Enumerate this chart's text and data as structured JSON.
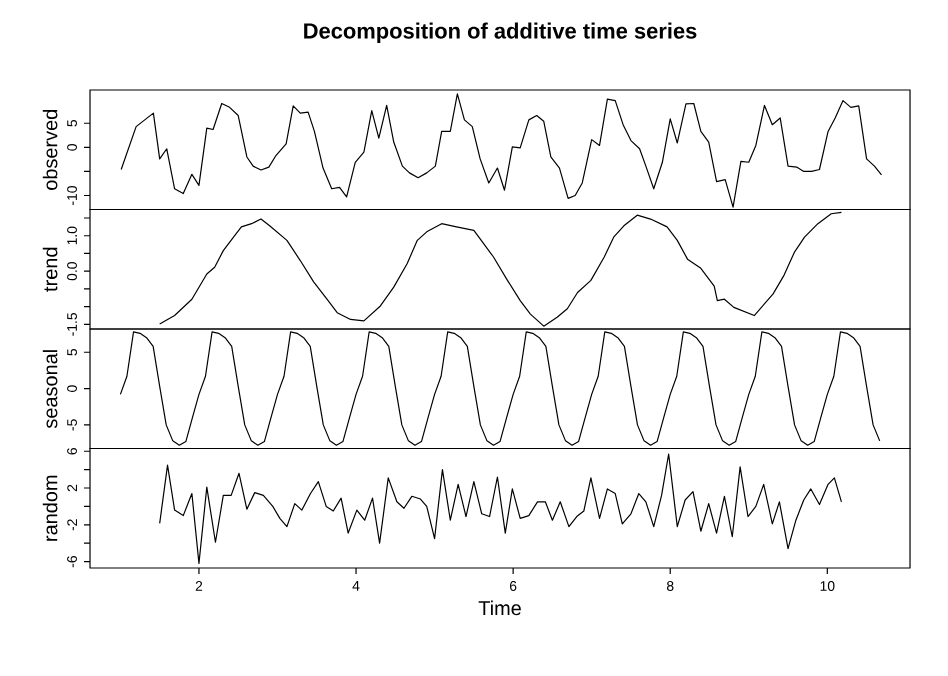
{
  "chart_data": [
    {
      "type": "line",
      "title": "Decomposition of additive time series",
      "ylabel": "observed",
      "tick_labels": "y",
      "xlim": [
        0.613,
        11.053
      ],
      "ylim": [
        -12.9,
        11.9
      ],
      "yticks": [
        -10,
        {
          "value": -5,
          "label": null
        },
        0,
        5
      ],
      "x": [
        1.01,
        1.2,
        1.31,
        1.42,
        1.5,
        1.59,
        1.69,
        1.8,
        1.91,
        2.0,
        2.1,
        2.18,
        2.29,
        2.39,
        2.5,
        2.61,
        2.69,
        2.79,
        2.89,
        2.98,
        3.11,
        3.2,
        3.29,
        3.39,
        3.47,
        3.58,
        3.69,
        3.79,
        3.88,
        3.99,
        4.1,
        4.2,
        4.29,
        4.39,
        4.48,
        4.59,
        4.68,
        4.79,
        4.9,
        5.01,
        5.09,
        5.2,
        5.29,
        5.38,
        5.48,
        5.58,
        5.69,
        5.8,
        5.89,
        5.99,
        6.09,
        6.2,
        6.3,
        6.39,
        6.48,
        6.59,
        6.7,
        6.79,
        6.88,
        7.0,
        7.1,
        7.2,
        7.3,
        7.4,
        7.5,
        7.61,
        7.69,
        7.79,
        7.9,
        8.0,
        8.09,
        8.2,
        8.3,
        8.39,
        8.49,
        8.59,
        8.7,
        8.8,
        8.9,
        9.0,
        9.09,
        9.2,
        9.3,
        9.4,
        9.5,
        9.61,
        9.7,
        9.8,
        9.9,
        10.01,
        10.1,
        10.2,
        10.3,
        10.4,
        10.5,
        10.6,
        10.69
      ],
      "values": [
        -4.6,
        4.3,
        5.7,
        7.1,
        -2.4,
        -0.3,
        -8.6,
        -9.6,
        -5.6,
        -7.9,
        4.0,
        3.7,
        9.1,
        8.3,
        6.6,
        -2.0,
        -3.9,
        -4.7,
        -4.1,
        -1.7,
        0.7,
        8.6,
        7.1,
        7.3,
        3.3,
        -4.3,
        -8.6,
        -8.3,
        -10.3,
        -3.1,
        -1.0,
        7.6,
        1.9,
        8.7,
        1.1,
        -3.9,
        -5.3,
        -6.3,
        -5.3,
        -3.9,
        3.3,
        3.3,
        11.1,
        5.7,
        4.3,
        -2.4,
        -7.4,
        -4.3,
        -8.9,
        0.1,
        -0.1,
        5.7,
        6.6,
        5.4,
        -2.0,
        -4.3,
        -10.6,
        -10.0,
        -7.4,
        1.6,
        0.4,
        10.0,
        9.7,
        4.7,
        1.4,
        -0.3,
        -3.9,
        -8.6,
        -3.1,
        5.9,
        0.9,
        9.0,
        9.1,
        3.3,
        1.1,
        -7.1,
        -6.7,
        -12.4,
        -2.9,
        -3.1,
        0.4,
        8.7,
        4.7,
        6.1,
        -3.9,
        -4.1,
        -5.0,
        -5.0,
        -4.6,
        3.3,
        6.1,
        9.7,
        8.3,
        8.6,
        -2.4,
        -3.9,
        -5.7
      ]
    },
    {
      "type": "line",
      "ylabel": "trend",
      "tick_labels": "y",
      "xlim": [
        0.613,
        11.053
      ],
      "ylim": [
        -1.63,
        1.74
      ],
      "yticks": [
        -1.5,
        {
          "value": -1,
          "label": null
        },
        {
          "value": -0.5,
          "label": null
        },
        {
          "value": 0,
          "label": "0.0"
        },
        {
          "value": 0.5,
          "label": null
        },
        {
          "value": 1,
          "label": "1.0"
        },
        {
          "value": 1.5,
          "label": null
        }
      ],
      "x": [
        1.5,
        1.69,
        1.91,
        2.1,
        2.2,
        2.31,
        2.44,
        2.54,
        2.67,
        2.79,
        2.9,
        3.12,
        3.29,
        3.46,
        3.63,
        3.76,
        3.93,
        4.1,
        4.31,
        4.48,
        4.65,
        4.78,
        4.9,
        5.09,
        5.28,
        5.5,
        5.58,
        5.75,
        5.92,
        6.09,
        6.22,
        6.39,
        6.56,
        6.69,
        6.82,
        6.99,
        7.16,
        7.28,
        7.41,
        7.58,
        7.75,
        7.96,
        8.09,
        8.22,
        8.39,
        8.56,
        8.6,
        8.69,
        8.81,
        9.07,
        9.31,
        9.45,
        9.58,
        9.71,
        9.88,
        10.05,
        10.18
      ],
      "values": [
        -1.49,
        -1.25,
        -0.79,
        -0.08,
        0.11,
        0.58,
        0.96,
        1.25,
        1.34,
        1.47,
        1.28,
        0.87,
        0.3,
        -0.3,
        -0.79,
        -1.17,
        -1.36,
        -1.4,
        -0.98,
        -0.45,
        0.21,
        0.87,
        1.11,
        1.34,
        1.25,
        1.15,
        0.91,
        0.4,
        -0.23,
        -0.83,
        -1.21,
        -1.55,
        -1.3,
        -1.06,
        -0.6,
        -0.26,
        0.4,
        0.96,
        1.28,
        1.58,
        1.47,
        1.25,
        0.87,
        0.34,
        0.08,
        -0.42,
        -0.83,
        -0.79,
        -1.02,
        -1.25,
        -0.64,
        -0.11,
        0.53,
        0.96,
        1.34,
        1.62,
        1.66
      ]
    },
    {
      "type": "line",
      "ylabel": "seasonal",
      "tick_labels": "y",
      "xlim": [
        0.613,
        11.053
      ],
      "ylim": [
        -8.25,
        8.2
      ],
      "yticks": [
        -5,
        0,
        5
      ],
      "x": [
        1,
        1.083,
        1.167,
        1.25,
        1.333,
        1.417,
        1.5,
        1.583,
        1.667,
        1.75,
        1.833,
        1.917,
        2,
        2.083,
        2.167,
        2.25,
        2.333,
        2.417,
        2.5,
        2.583,
        2.667,
        2.75,
        2.833,
        2.917,
        3,
        3.083,
        3.167,
        3.25,
        3.333,
        3.417,
        3.5,
        3.583,
        3.667,
        3.75,
        3.833,
        3.917,
        4,
        4.083,
        4.167,
        4.25,
        4.333,
        4.417,
        4.5,
        4.583,
        4.667,
        4.75,
        4.833,
        4.917,
        5,
        5.083,
        5.167,
        5.25,
        5.333,
        5.417,
        5.5,
        5.583,
        5.667,
        5.75,
        5.833,
        5.917,
        6,
        6.083,
        6.167,
        6.25,
        6.333,
        6.417,
        6.5,
        6.583,
        6.667,
        6.75,
        6.833,
        6.917,
        7,
        7.083,
        7.167,
        7.25,
        7.333,
        7.417,
        7.5,
        7.583,
        7.667,
        7.75,
        7.833,
        7.917,
        8,
        8.083,
        8.167,
        8.25,
        8.333,
        8.417,
        8.5,
        8.583,
        8.667,
        8.75,
        8.833,
        8.917,
        9,
        9.083,
        9.167,
        9.25,
        9.333,
        9.417,
        9.5,
        9.583,
        9.667,
        9.75,
        9.833,
        9.917,
        10,
        10.083,
        10.167,
        10.25,
        10.333,
        10.417,
        10.5,
        10.583,
        10.667
      ],
      "values": [
        -0.8,
        1.7,
        7.8,
        7.6,
        7.0,
        5.8,
        0.3,
        -5.0,
        -7.2,
        -7.8,
        -7.3,
        -4.0,
        -0.8,
        1.7,
        7.8,
        7.6,
        7.0,
        5.8,
        0.3,
        -5.0,
        -7.2,
        -7.8,
        -7.3,
        -4.0,
        -0.8,
        1.7,
        7.8,
        7.6,
        7.0,
        5.8,
        0.3,
        -5.0,
        -7.2,
        -7.8,
        -7.3,
        -4.0,
        -0.8,
        1.7,
        7.8,
        7.6,
        7.0,
        5.8,
        0.3,
        -5.0,
        -7.2,
        -7.8,
        -7.3,
        -4.0,
        -0.8,
        1.7,
        7.8,
        7.6,
        7.0,
        5.8,
        0.3,
        -5.0,
        -7.2,
        -7.8,
        -7.3,
        -4.0,
        -0.8,
        1.7,
        7.8,
        7.6,
        7.0,
        5.8,
        0.3,
        -5.0,
        -7.2,
        -7.8,
        -7.3,
        -4.0,
        -0.8,
        1.7,
        7.8,
        7.6,
        7.0,
        5.8,
        0.3,
        -5.0,
        -7.2,
        -7.8,
        -7.3,
        -4.0,
        -0.8,
        1.7,
        7.8,
        7.6,
        7.0,
        5.8,
        0.3,
        -5.0,
        -7.2,
        -7.8,
        -7.3,
        -4.0,
        -0.8,
        1.7,
        7.8,
        7.6,
        7.0,
        5.8,
        0.3,
        -5.0,
        -7.2,
        -7.8,
        -7.3,
        -4.0,
        -0.8,
        1.7,
        7.8,
        7.6,
        7.0,
        5.8,
        0.3,
        -5.0,
        -7.2
      ]
    },
    {
      "type": "line",
      "ylabel": "random",
      "xlabel": "Time",
      "xlim": [
        0.613,
        11.053
      ],
      "ylim": [
        -6.7,
        6.3
      ],
      "xticks": [
        2,
        4,
        6,
        8,
        10
      ],
      "yticks": [
        -6,
        {
          "value": -4,
          "label": null
        },
        -2,
        {
          "value": 0,
          "label": null
        },
        2,
        {
          "value": 4,
          "label": null
        },
        6
      ],
      "x": [
        1.5,
        1.6,
        1.69,
        1.8,
        1.91,
        2.0,
        2.1,
        2.21,
        2.31,
        2.41,
        2.51,
        2.61,
        2.71,
        2.82,
        2.94,
        3.03,
        3.12,
        3.22,
        3.31,
        3.42,
        3.52,
        3.62,
        3.71,
        3.81,
        3.9,
        4.01,
        4.11,
        4.21,
        4.3,
        4.41,
        4.52,
        4.61,
        4.71,
        4.82,
        4.9,
        5.0,
        5.1,
        5.2,
        5.3,
        5.4,
        5.5,
        5.6,
        5.7,
        5.8,
        5.9,
        5.99,
        6.09,
        6.2,
        6.31,
        6.41,
        6.5,
        6.6,
        6.71,
        6.81,
        6.9,
        6.99,
        7.1,
        7.2,
        7.3,
        7.39,
        7.5,
        7.6,
        7.69,
        7.79,
        7.89,
        7.98,
        8.09,
        8.19,
        8.29,
        8.39,
        8.49,
        8.59,
        8.69,
        8.79,
        8.89,
        8.99,
        9.09,
        9.19,
        9.3,
        9.39,
        9.5,
        9.6,
        9.7,
        9.79,
        9.9,
        10.01,
        10.09,
        10.18
      ],
      "values": [
        -1.85,
        4.5,
        -0.4,
        -1.0,
        1.4,
        -6.2,
        2.1,
        -3.9,
        1.2,
        1.2,
        3.6,
        -0.3,
        1.5,
        1.2,
        0.0,
        -1.3,
        -2.2,
        0.3,
        -0.4,
        1.4,
        2.7,
        0.0,
        -0.5,
        0.9,
        -2.9,
        -0.4,
        -1.5,
        0.9,
        -4.0,
        3.1,
        0.5,
        -0.2,
        1.1,
        0.8,
        0.0,
        -3.5,
        4.0,
        -1.5,
        2.4,
        -1.1,
        2.7,
        -0.8,
        -1.1,
        3.2,
        -2.9,
        1.9,
        -1.3,
        -1.0,
        0.5,
        0.5,
        -1.5,
        0.5,
        -2.2,
        -1.1,
        -0.5,
        3.1,
        -1.3,
        1.9,
        1.4,
        -1.9,
        -0.8,
        1.4,
        0.5,
        -2.2,
        1.2,
        5.7,
        -2.2,
        0.7,
        1.6,
        -2.7,
        0.3,
        -2.9,
        1.1,
        -3.3,
        4.3,
        -1.1,
        0.0,
        2.4,
        -1.9,
        0.5,
        -4.6,
        -1.5,
        0.7,
        1.9,
        0.2,
        2.4,
        3.1,
        0.5
      ]
    }
  ]
}
